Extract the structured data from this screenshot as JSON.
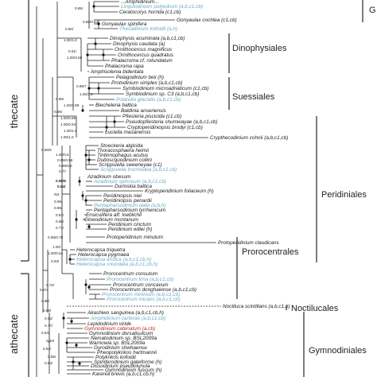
{
  "side_labels": {
    "thecate": "thecate",
    "athecate": "athecate"
  },
  "clades": [
    {
      "id": "dinophysiales",
      "label": "Dinophysiales"
    },
    {
      "id": "suessiales",
      "label": "Suessiales"
    },
    {
      "id": "peridiniales",
      "label": "Peridiniales"
    },
    {
      "id": "prorocentrales",
      "label": "Prorocentrales"
    },
    {
      "id": "noctilucales",
      "label": "Noctilucales"
    },
    {
      "id": "gymnodiniales",
      "label": "Gymnodiniales"
    },
    {
      "id": "top-partial",
      "label": "G"
    }
  ],
  "taxa": [
    {
      "name": "...Amphidinium...",
      "color": "#1a1a1a"
    },
    {
      "name": "Lingulodinium polyedrum (a,b,c1,cb)",
      "color": "#6aa9c6"
    },
    {
      "name": "Ceratocorys horrida (c1,cb)",
      "color": "#1a1a1a"
    },
    {
      "name": "Gonyaulax cochlea (c1,cb)",
      "color": "#1a1a1a"
    },
    {
      "name": "Gonyaulax spinifera",
      "color": "#1a1a1a"
    },
    {
      "name": "Thecadinium kofoidii (a,h)",
      "color": "#6aa9c6"
    },
    {
      "name": "Dinophysis acuminata (a,b,c1,cb)",
      "color": "#1a1a1a"
    },
    {
      "name": "Dinophysis caudata (a)",
      "color": "#1a1a1a"
    },
    {
      "name": "Ornithocercus magnificus",
      "color": "#1a1a1a"
    },
    {
      "name": "Ornithocercus quadratus",
      "color": "#1a1a1a"
    },
    {
      "name": "Phalacroma cf. rotundatum",
      "color": "#1a1a1a"
    },
    {
      "name": "Phalacroma rapa",
      "color": "#1a1a1a"
    },
    {
      "name": "Amphisolenia bidentata",
      "color": "#1a1a1a"
    },
    {
      "name": "Pelagodinium beii (h)",
      "color": "#1a1a1a"
    },
    {
      "name": "Protodinium simplex (a,b,c1,cb)",
      "color": "#1a1a1a"
    },
    {
      "name": "Symbiodinium microadriaticum (c1,cb)",
      "color": "#1a1a1a"
    },
    {
      "name": "Symbiodinium sp. C3 (a,b,c1,cb)",
      "color": "#1a1a1a"
    },
    {
      "name": "Polarella glacialis (a,b,c1,cb)",
      "color": "#6aa9c6"
    },
    {
      "name": "Biecheleria baltica",
      "color": "#1a1a1a"
    },
    {
      "name": "Baldinia anseriensis",
      "color": "#1a1a1a"
    },
    {
      "name": "Pfiesteria piscicida (c1,cb)",
      "color": "#1a1a1a"
    },
    {
      "name": "Pseudopfiesteria shumwayae (a,b,c1,cb)",
      "color": "#1a1a1a"
    },
    {
      "name": "Cryptoperidiniopsis brodyi (c1,cb)",
      "color": "#1a1a1a"
    },
    {
      "name": "Luciella masanensis",
      "color": "#1a1a1a"
    },
    {
      "name": "Crypthecodinium cohnii (a,b,c1,cb)",
      "color": "#1a1a1a"
    },
    {
      "name": "Stoeckeria algicida",
      "color": "#1a1a1a"
    },
    {
      "name": "Thoracosphaera heimii",
      "color": "#1a1a1a"
    },
    {
      "name": "Tintinnophagus acutus",
      "color": "#1a1a1a"
    },
    {
      "name": "Duboscquodinium collini",
      "color": "#1a1a1a"
    },
    {
      "name": "Scrippsiella sweeneyae (c1)",
      "color": "#1a1a1a"
    },
    {
      "name": "Scrippsiella trochoidea (a,b,c1,cb)",
      "color": "#6aa9c6"
    },
    {
      "name": "Azadinium obesum",
      "color": "#1a1a1a"
    },
    {
      "name": "Azadinium spinosum (a,b,c1,cb)",
      "color": "#6aa9c6"
    },
    {
      "name": "Durinskia baltica",
      "color": "#1a1a1a"
    },
    {
      "name": "Kryptoperidinium foliaceum (h)",
      "color": "#1a1a1a"
    },
    {
      "name": "Peridiniopsis niei",
      "color": "#1a1a1a"
    },
    {
      "name": "Peridiniopsis penardii",
      "color": "#1a1a1a"
    },
    {
      "name": "Pentapharsodinium dalei (a,b,h)",
      "color": "#6aa9c6"
    },
    {
      "name": "Pentapharsodinium tyrrhenicum",
      "color": "#1a1a1a"
    },
    {
      "name": "Ensiculifera aff. loeblichii",
      "color": "#1a1a1a"
    },
    {
      "name": "Gloeodinium montanum",
      "color": "#1a1a1a"
    },
    {
      "name": "Peridinium cinctum",
      "color": "#1a1a1a"
    },
    {
      "name": "Peridinium willei (h)",
      "color": "#1a1a1a"
    },
    {
      "name": "Protoperidinium minutum",
      "color": "#1a1a1a"
    },
    {
      "name": "Protoperidinium claudicans",
      "color": "#1a1a1a"
    },
    {
      "name": "Heterocapsa triquetra",
      "color": "#1a1a1a"
    },
    {
      "name": "Heterocapsa pygmaea",
      "color": "#1a1a1a"
    },
    {
      "name": "Heterocapsa arctica (a,b,c1,cb,h)",
      "color": "#6aa9c6"
    },
    {
      "name": "Heterocapsa rotundata (a,b,c1,cb,h)",
      "color": "#6aa9c6"
    },
    {
      "name": "Prorocentrum consutum",
      "color": "#1a1a1a"
    },
    {
      "name": "Prorocentrum lima (a,b,c1,cb)",
      "color": "#6aa9c6"
    },
    {
      "name": "Prorocentrum concavum",
      "color": "#1a1a1a"
    },
    {
      "name": "Prorocentrum donghaiense (a,b,c1,cb)",
      "color": "#1a1a1a"
    },
    {
      "name": "Prorocentrum minimum (a,b,c1,cb)",
      "color": "#6aa9c6"
    },
    {
      "name": "Prorocentrum micans (a,b,c1,cb)",
      "color": "#6aa9c6"
    },
    {
      "name": "Noctiluca scintillans (a,b,c1,h)",
      "color": "#1a1a1a"
    },
    {
      "name": "Akashiwo sanguinea (a,b,c1,cb,h)",
      "color": "#1a1a1a"
    },
    {
      "name": "Amphidinium carterae (a,b,c1,cb)",
      "color": "#6aa9c6"
    },
    {
      "name": "Lepidodinium viride",
      "color": "#1a1a1a"
    },
    {
      "name": "Gymnodinium catenatum (a,cb)",
      "color": "#c0262f"
    },
    {
      "name": "Gymnodinium dorsalisulcum",
      "color": "#1a1a1a"
    },
    {
      "name": "Nematodinium sp. BSL2009a",
      "color": "#1a1a1a"
    },
    {
      "name": "Warnowia sp. BSL2009a",
      "color": "#1a1a1a"
    },
    {
      "name": "Gyrodinium shwhaense",
      "color": "#1a1a1a"
    },
    {
      "name": "Pheopolykrikos hartmannii",
      "color": "#1a1a1a"
    },
    {
      "name": "Polykrikos kofoidii",
      "color": "#1a1a1a"
    },
    {
      "name": "Spiniferodinium galeiforme (h)",
      "color": "#1a1a1a"
    },
    {
      "name": "Dissodinium pseudolunula",
      "color": "#1a1a1a"
    },
    {
      "name": "Gymnodinium fuscum (h)",
      "color": "#1a1a1a"
    },
    {
      "name": "Karenia brevis (a,b,c1,cb,h)",
      "color": "#1a1a1a"
    },
    {
      "name": "Karenia mikimotoi (a,b,c1,cb,h)",
      "color": "#1a1a1a"
    },
    {
      "name": "Karlodinium veneficum (a,b,c1,cb,h)",
      "color": "#1a1a1a"
    },
    {
      "name": "Brachidinium capitatum",
      "color": "#1a1a1a"
    },
    {
      "name": "Karlodinium armiger (a,b,c1,cb,h)",
      "color": "#6aa9c6"
    },
    {
      "name": "Takayama cf. pulchellum",
      "color": "#1a1a1a"
    },
    {
      "name": "Gyrodinium dominans",
      "color": "#1a1a1a"
    },
    {
      "name": "Gyrodinium spirale",
      "color": "#1a1a1a"
    }
  ],
  "supports": [
    "0.65/",
    "0.58/0.54",
    "0.60/",
    "1.00/1.0",
    "0.61/",
    "1.00/0.58",
    "0.99/7",
    "1.00/1.0",
    "0.99/",
    "1.00/0.99",
    "0.96/",
    "1.00/0.99",
    "1.00/0.94",
    "1.00/1.0",
    "1.00/1.0",
    "0.86/5",
    "1.00/0.5",
    "0.99/0.98",
    "0.99/0.5",
    "0.77",
    "0.98/8",
    "0.94/",
    "/63",
    "0.99/",
    "0.99/",
    "0.87/",
    "0.96/",
    "0.77/",
    "0.68/0.78",
    "1.00/",
    "1.00/0.64",
    "0.63/",
    "0.72/",
    "0.67/",
    "0.85/",
    "0.88/",
    "0.92/",
    "0.77/",
    "0.53/",
    "0.94/",
    "0.63/",
    "0.85/",
    "0.64/"
  ]
}
